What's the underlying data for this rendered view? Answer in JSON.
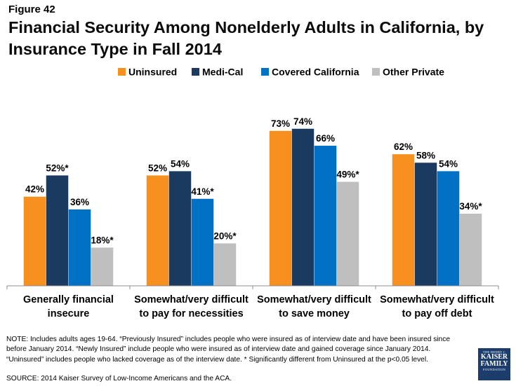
{
  "figure_label": "Figure 42",
  "title": "Financial Security Among Nonelderly Adults in California, by Insurance Type in Fall 2014",
  "note": "NOTE: Includes adults ages 19-64. “Previously Insured” includes people who were insured as of interview date and have been insured since before January 2014. “Newly Insured” include people who were insured as of interview date and gained coverage since January 2014. “Uninsured” includes people who lacked coverage as of the interview date. * Significantly different from Uninsured at the p<0.05 level.",
  "source": "SOURCE: 2014 Kaiser Survey of Low-Income Americans and the ACA.",
  "logo": {
    "line1": "THE HENRY J.",
    "line2": "KAISER",
    "line3": "FAMILY",
    "line4": "FOUNDATION"
  },
  "chart_data": {
    "type": "bar",
    "title": "Financial Security Among Nonelderly Adults in California, by Insurance Type in Fall 2014",
    "xlabel": "",
    "ylabel": "",
    "ylim": [
      0,
      100
    ],
    "grid": false,
    "legend_position": "top",
    "categories": [
      [
        "Generally financial",
        "insecure"
      ],
      [
        "Somewhat/very difficult",
        "to pay for necessities"
      ],
      [
        "Somewhat/very difficult",
        "to save money"
      ],
      [
        "Somewhat/very difficult",
        "to pay off debt"
      ]
    ],
    "series": [
      {
        "name": "Uninsured",
        "color": "#f7901e",
        "values": [
          42,
          52,
          73,
          62
        ],
        "labels": [
          "42%",
          "52%",
          "73%",
          "62%"
        ]
      },
      {
        "name": "Medi-Cal",
        "color": "#1a3a5f",
        "values": [
          52,
          54,
          74,
          58
        ],
        "labels": [
          "52%*",
          "54%",
          "74%",
          "58%"
        ]
      },
      {
        "name": "Covered California",
        "color": "#0071c5",
        "values": [
          36,
          41,
          66,
          54
        ],
        "labels": [
          "36%",
          "41%*",
          "66%",
          "54%"
        ]
      },
      {
        "name": "Other Private",
        "color": "#bfbfbf",
        "values": [
          18,
          20,
          49,
          34
        ],
        "labels": [
          "18%*",
          "20%*",
          "49%*",
          "34%*"
        ]
      }
    ]
  }
}
